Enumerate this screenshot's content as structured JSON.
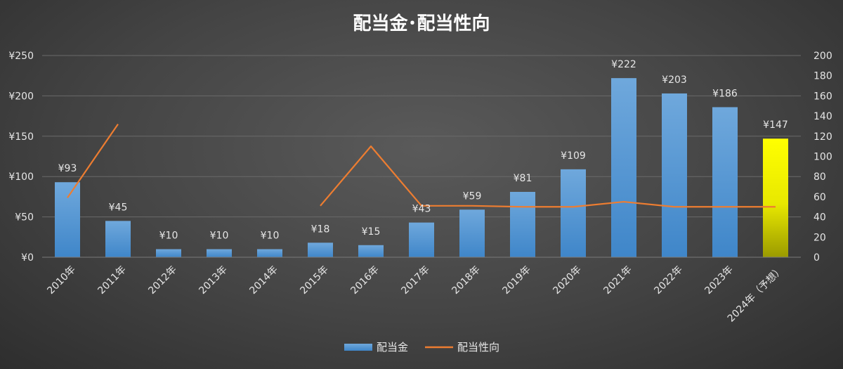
{
  "colors": {
    "bar": "#5b9bd5",
    "bar_highlight_top": "#ffff00",
    "bar_highlight_bottom": "#9a9a00",
    "line": "#ed7d31"
  },
  "chart_data": {
    "type": "bar",
    "title": "配当金･配当性向",
    "categories": [
      "2010年",
      "2011年",
      "2012年",
      "2013年",
      "2014年",
      "2015年",
      "2016年",
      "2017年",
      "2018年",
      "2019年",
      "2020年",
      "2021年",
      "2022年",
      "2023年",
      "2024年（予想）"
    ],
    "series": [
      {
        "name": "配当金",
        "type": "bar",
        "axis": "left",
        "values": [
          93,
          45,
          10,
          10,
          10,
          18,
          15,
          43,
          59,
          81,
          109,
          222,
          203,
          186,
          147
        ],
        "labels": [
          "¥93",
          "¥45",
          "¥10",
          "¥10",
          "¥10",
          "¥18",
          "¥15",
          "¥43",
          "¥59",
          "¥81",
          "¥109",
          "¥222",
          "¥203",
          "¥186",
          "¥147"
        ],
        "highlight_index": 14
      },
      {
        "name": "配当性向",
        "type": "line",
        "axis": "right",
        "values": [
          59,
          132,
          null,
          null,
          null,
          51,
          110,
          51,
          51,
          50,
          50,
          55,
          50,
          50,
          50
        ]
      }
    ],
    "y_left": {
      "min": 0,
      "max": 250,
      "ticks": [
        "¥0",
        "¥50",
        "¥100",
        "¥150",
        "¥200",
        "¥250"
      ]
    },
    "y_right": {
      "min": 0,
      "max": 200,
      "ticks": [
        "0",
        "20",
        "40",
        "60",
        "80",
        "100",
        "120",
        "140",
        "160",
        "180",
        "200"
      ]
    },
    "grid": true,
    "legend": "bottom"
  }
}
